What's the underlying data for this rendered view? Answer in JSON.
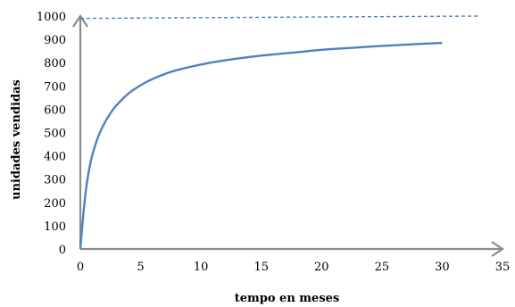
{
  "chart_data": {
    "type": "line",
    "title": "",
    "xlabel": "tempo en meses",
    "ylabel": "unidades vendidas",
    "xlim": [
      0,
      35
    ],
    "ylim": [
      0,
      1000
    ],
    "x_ticks": [
      0,
      5,
      10,
      15,
      20,
      25,
      30,
      35
    ],
    "y_ticks": [
      0,
      100,
      200,
      300,
      400,
      500,
      600,
      700,
      800,
      900,
      1000
    ],
    "grid": false,
    "legend": "none",
    "axes_have_arrowheads": true,
    "series": [
      {
        "style": "solid",
        "color": "#4f81bd",
        "x": [
          0,
          0.25,
          0.5,
          0.75,
          1,
          1.5,
          2,
          2.5,
          3,
          4,
          5,
          6,
          7,
          8,
          10,
          12,
          15,
          18,
          20,
          22,
          25,
          28,
          30
        ],
        "y": [
          0,
          150,
          268,
          346,
          405,
          485,
          540,
          583,
          617,
          668,
          703,
          730,
          751,
          768,
          792,
          810,
          830,
          845,
          855,
          862,
          872,
          880,
          885
        ]
      },
      {
        "style": "dashed",
        "color": "#4f81bd",
        "x": [
          0,
          33
        ],
        "y": [
          990,
          1000
        ]
      }
    ]
  }
}
